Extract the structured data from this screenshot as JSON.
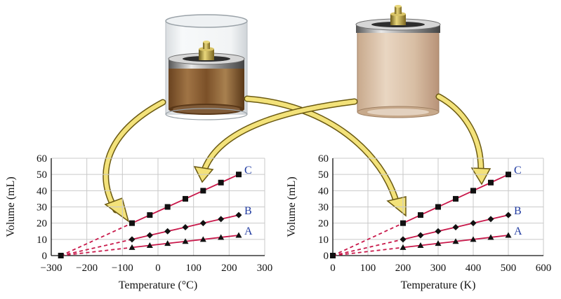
{
  "colors": {
    "line": "#c8184a",
    "grid": "#c9c9c9",
    "marker": "#111111",
    "series_label": "#1f3aa0",
    "arrow_fill": "#f3e27a",
    "arrow_stroke": "#6b5a12"
  },
  "illustration": {
    "left": "gas cylinder under glass bell with weighted piston, brown gas",
    "right": "sealed cylinder with weight on lid, tan gas"
  },
  "chart_data": [
    {
      "type": "line",
      "xlabel": "Temperature (°C)",
      "ylabel": "Volume (mL)",
      "xlim": [
        -300,
        300
      ],
      "ylim": [
        0,
        60
      ],
      "xticks": [
        "−300",
        "−200",
        "−100",
        "0",
        "100",
        "200",
        "300"
      ],
      "yticks": [
        "0",
        "10",
        "20",
        "30",
        "40",
        "50",
        "60"
      ],
      "grid": true,
      "extrapolation": {
        "from_x": -273,
        "style": "dashed"
      },
      "series": [
        {
          "name": "C",
          "marker": "square",
          "x": [
            -73,
            -23,
            27,
            77,
            127,
            177,
            227
          ],
          "y": [
            20,
            25,
            30,
            35,
            40,
            45,
            50
          ]
        },
        {
          "name": "B",
          "marker": "diamond",
          "x": [
            -73,
            -23,
            27,
            77,
            127,
            177,
            227
          ],
          "y": [
            10,
            12.5,
            15,
            17.5,
            20,
            22.5,
            25
          ]
        },
        {
          "name": "A",
          "marker": "triangle",
          "x": [
            -73,
            -23,
            27,
            77,
            127,
            177,
            227
          ],
          "y": [
            5,
            6.25,
            7.5,
            8.75,
            10,
            11.25,
            12.5
          ]
        }
      ]
    },
    {
      "type": "line",
      "xlabel": "Temperature (K)",
      "ylabel": "Volume (mL)",
      "xlim": [
        0,
        600
      ],
      "ylim": [
        0,
        60
      ],
      "xticks": [
        "0",
        "100",
        "200",
        "300",
        "400",
        "500",
        "600"
      ],
      "yticks": [
        "0",
        "10",
        "20",
        "30",
        "40",
        "50",
        "60"
      ],
      "grid": true,
      "extrapolation": {
        "from_x": 0,
        "style": "dashed"
      },
      "series": [
        {
          "name": "C",
          "marker": "square",
          "x": [
            200,
            250,
            300,
            350,
            400,
            450,
            500
          ],
          "y": [
            20,
            25,
            30,
            35,
            40,
            45,
            50
          ]
        },
        {
          "name": "B",
          "marker": "diamond",
          "x": [
            200,
            250,
            300,
            350,
            400,
            450,
            500
          ],
          "y": [
            10,
            12.5,
            15,
            17.5,
            20,
            22.5,
            25
          ]
        },
        {
          "name": "A",
          "marker": "triangle",
          "x": [
            200,
            250,
            300,
            350,
            400,
            450,
            500
          ],
          "y": [
            5,
            6.25,
            7.5,
            8.75,
            10,
            11.25,
            12.5
          ]
        }
      ]
    }
  ]
}
